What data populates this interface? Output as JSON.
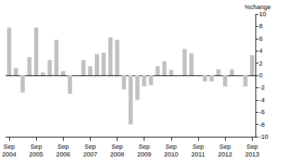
{
  "chart_data": {
    "type": "bar",
    "y_label": "%change",
    "categories": [
      "Sep 2004",
      null,
      null,
      null,
      "Sep 2005",
      null,
      null,
      null,
      "Sep 2006",
      null,
      null,
      null,
      "Sep 2007",
      null,
      null,
      null,
      "Sep 2008",
      null,
      null,
      null,
      "Sep 2009",
      null,
      null,
      null,
      "Sep 2010",
      null,
      null,
      null,
      "Sep 2011",
      null,
      null,
      null,
      "Sep 2012",
      null,
      null,
      null,
      "Sep 2013"
    ],
    "values": [
      7.8,
      1.2,
      -2.8,
      3.0,
      7.8,
      0.5,
      2.5,
      5.8,
      0.7,
      -3.0,
      0,
      2.5,
      1.5,
      3.5,
      3.7,
      6.2,
      5.8,
      -2.3,
      -8.0,
      -4.0,
      -1.8,
      -1.6,
      1.5,
      2.3,
      0.9,
      0,
      4.3,
      3.6,
      0,
      -1.0,
      -1.0,
      1.0,
      -1.8,
      1.0,
      0,
      -1.8,
      3.3
    ],
    "color": "#c0c0c0",
    "ylim": [
      -10,
      10
    ],
    "yticks": [
      -10,
      -8,
      -6,
      -4,
      -2,
      0,
      2,
      4,
      6,
      8,
      10
    ],
    "grid": false
  }
}
